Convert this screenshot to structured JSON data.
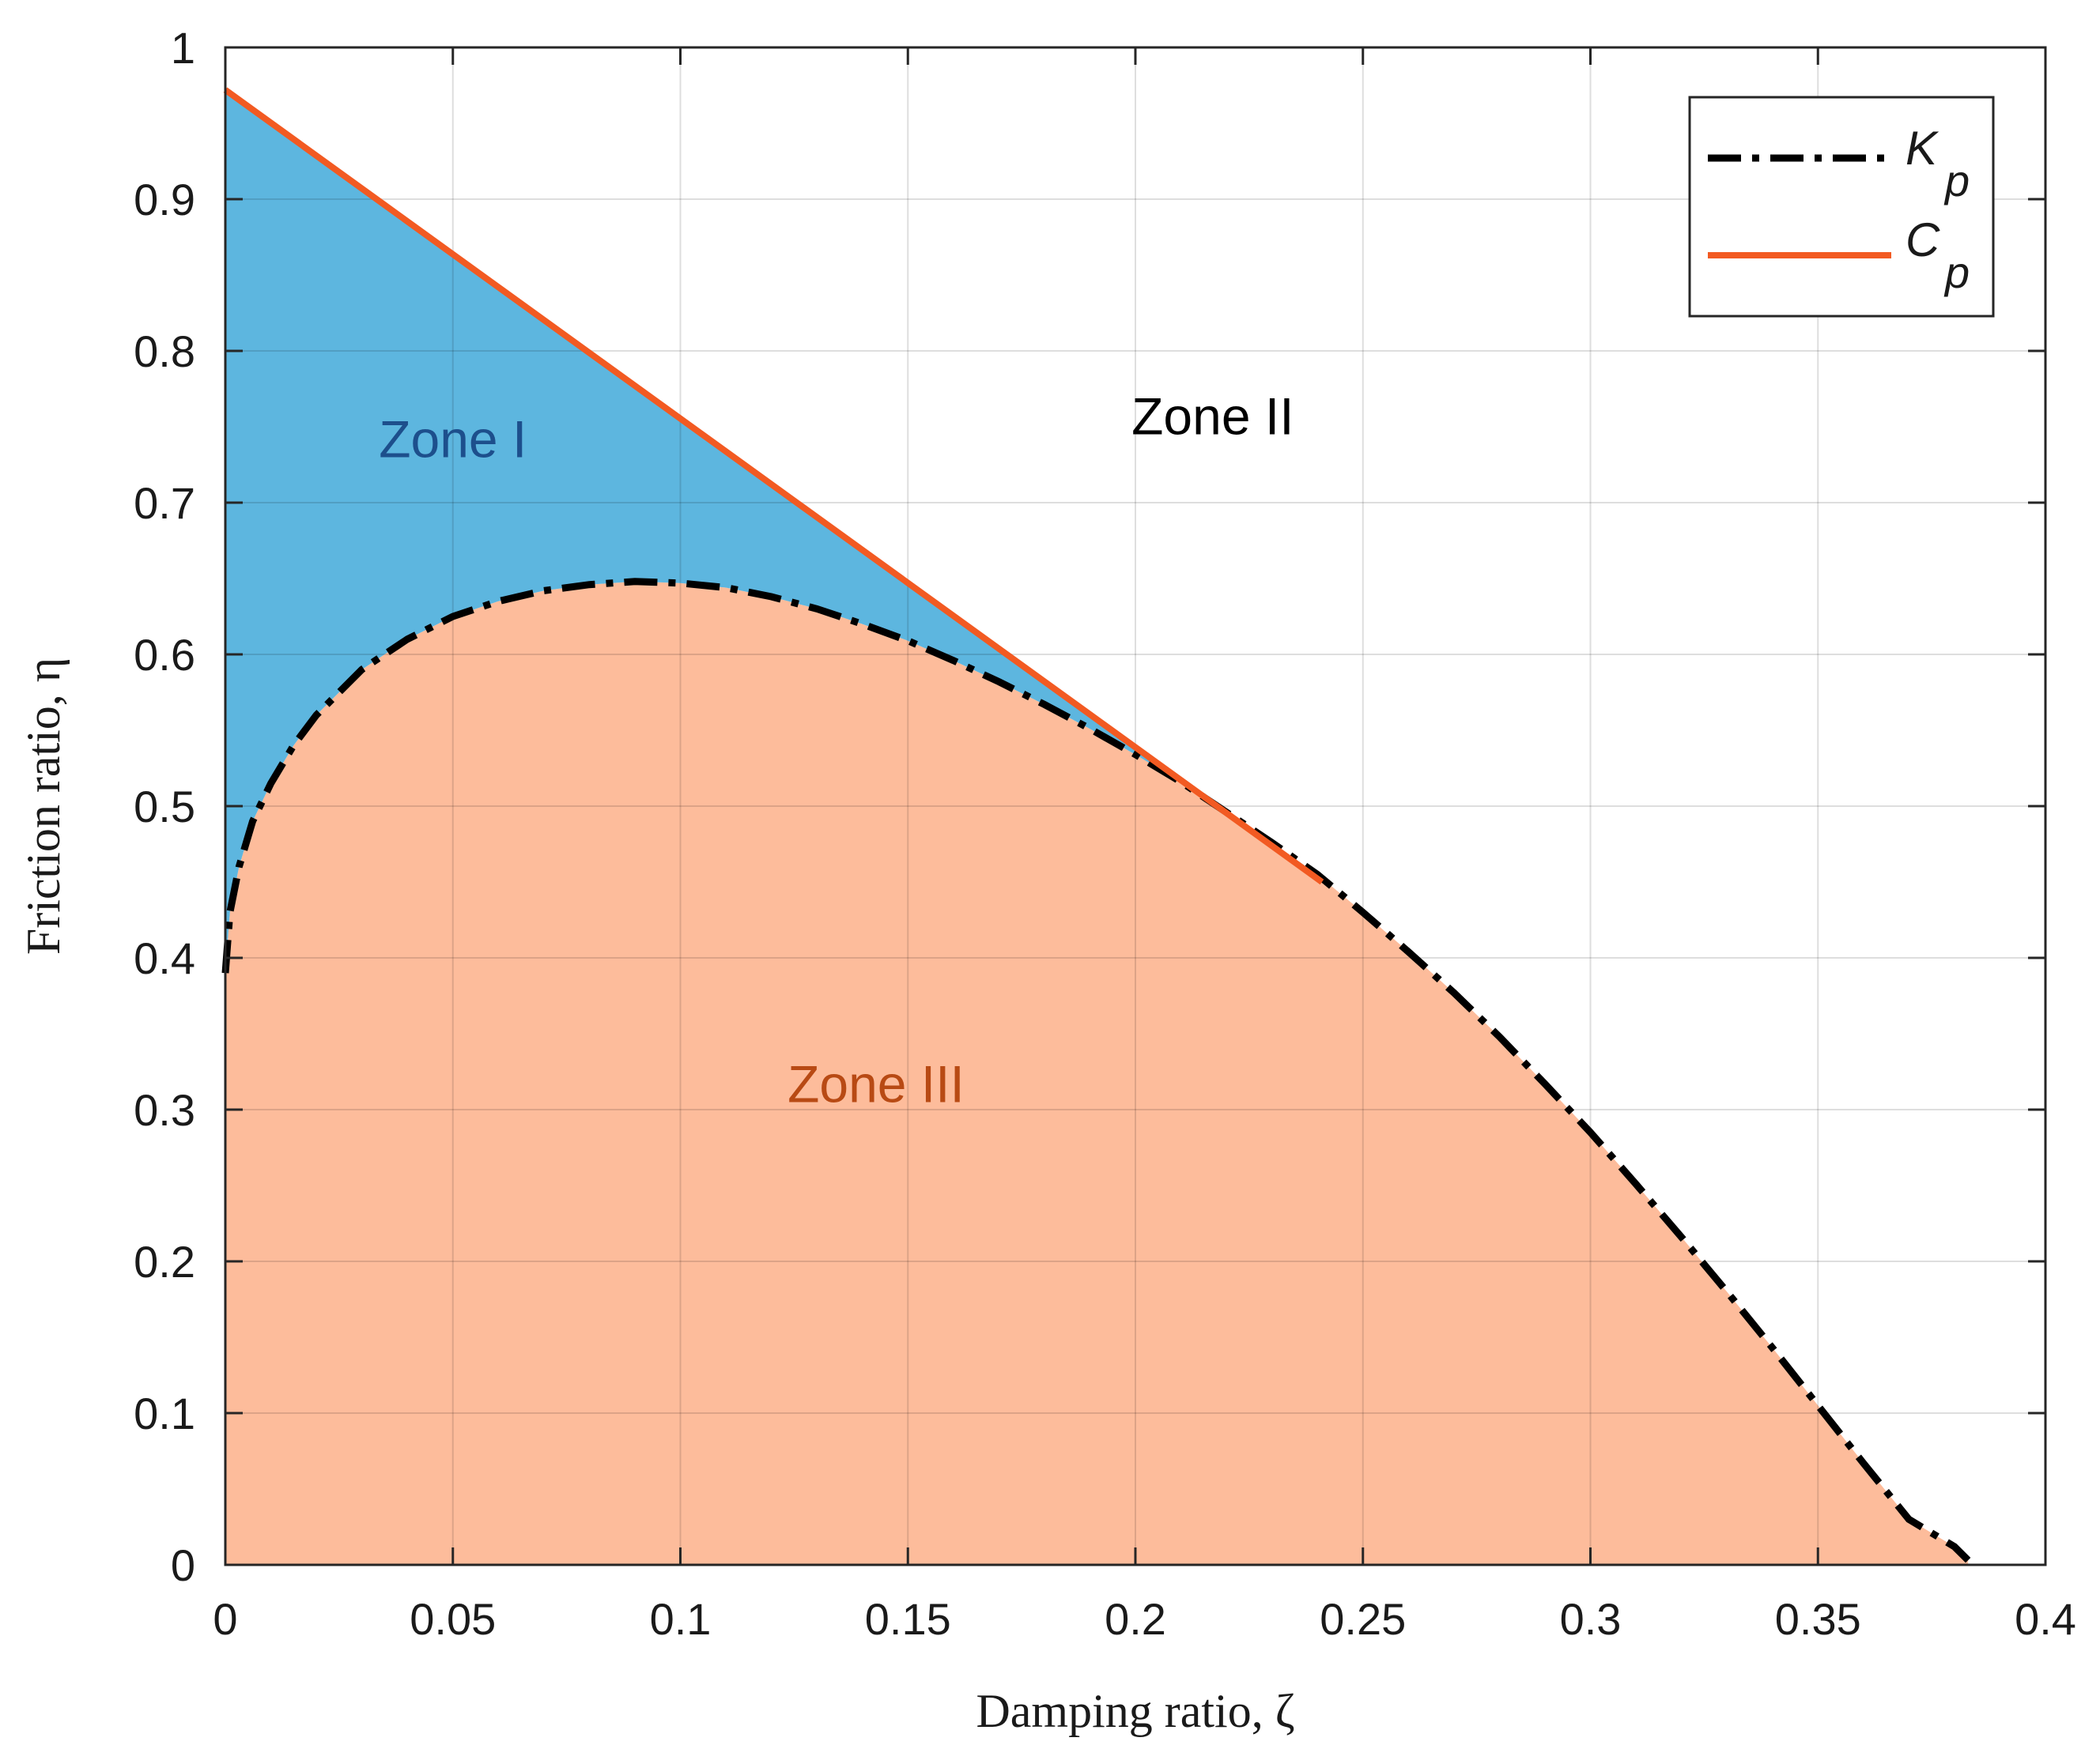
{
  "chart_data": {
    "type": "area",
    "xlabel": "Damping ratio, ζ",
    "ylabel": "Friction ratio, η",
    "xlim": [
      0,
      0.4
    ],
    "ylim": [
      0,
      1
    ],
    "x_ticks": [
      "0",
      "0.05",
      "0.1",
      "0.15",
      "0.2",
      "0.25",
      "0.3",
      "0.35",
      "0.4"
    ],
    "y_ticks": [
      "0",
      "0.1",
      "0.2",
      "0.3",
      "0.4",
      "0.5",
      "0.6",
      "0.7",
      "0.8",
      "0.9",
      "1"
    ],
    "grid": true,
    "legend_position": "top-right",
    "series": [
      {
        "name": "K",
        "subscript": "p",
        "style": "dash-dot",
        "color": "#000000",
        "x": [
          0,
          0.001,
          0.003,
          0.006,
          0.01,
          0.015,
          0.02,
          0.03,
          0.04,
          0.05,
          0.06,
          0.07,
          0.08,
          0.09,
          0.1,
          0.11,
          0.12,
          0.13,
          0.14,
          0.15,
          0.16,
          0.17,
          0.18,
          0.19,
          0.2,
          0.21,
          0.22,
          0.23,
          0.24,
          0.25,
          0.26,
          0.27,
          0.28,
          0.29,
          0.3,
          0.31,
          0.32,
          0.33,
          0.34,
          0.35,
          0.36,
          0.37,
          0.38,
          0.383
        ],
        "y": [
          0.39,
          0.43,
          0.46,
          0.49,
          0.515,
          0.54,
          0.56,
          0.59,
          0.61,
          0.625,
          0.635,
          0.642,
          0.646,
          0.648,
          0.647,
          0.644,
          0.638,
          0.63,
          0.62,
          0.609,
          0.596,
          0.582,
          0.567,
          0.551,
          0.534,
          0.516,
          0.496,
          0.476,
          0.455,
          0.43,
          0.404,
          0.377,
          0.348,
          0.317,
          0.285,
          0.251,
          0.216,
          0.18,
          0.143,
          0.105,
          0.067,
          0.03,
          0.012,
          0.003
        ]
      },
      {
        "name": "C",
        "subscript": "p",
        "style": "solid",
        "color": "#f25a22",
        "x": [
          0,
          0.241
        ],
        "y": [
          0.972,
          0.45
        ]
      }
    ],
    "regions": [
      {
        "label": "Zone I",
        "color": "#5db6df",
        "label_color": "#1d4f8c",
        "label_at": [
          0.05,
          0.73
        ]
      },
      {
        "label": "Zone II",
        "color": "#ffffff",
        "label_color": "#000000",
        "label_at": [
          0.217,
          0.745
        ]
      },
      {
        "label": "Zone III",
        "color": "#fdbc9b",
        "label_color": "#b84a14",
        "label_at": [
          0.143,
          0.305
        ]
      }
    ]
  }
}
